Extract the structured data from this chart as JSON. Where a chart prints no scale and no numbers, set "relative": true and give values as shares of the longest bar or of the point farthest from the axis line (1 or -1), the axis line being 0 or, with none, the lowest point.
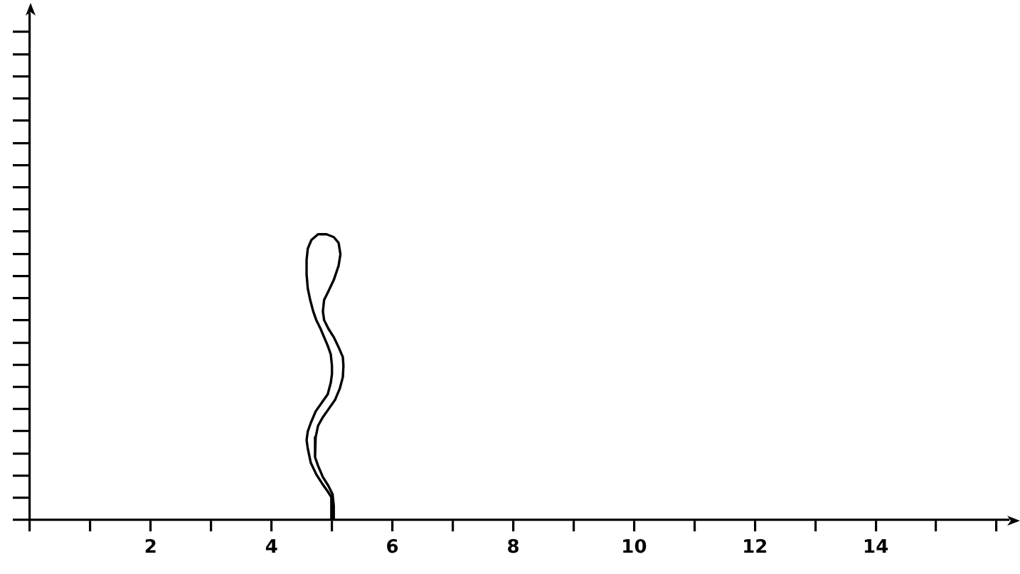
{
  "chart_data": {
    "type": "line",
    "relative": true,
    "color": "#000000",
    "line_style": "solid",
    "tick_labels": "x",
    "x": [
      4.99,
      4.99,
      4.93,
      4.83,
      4.74,
      4.65,
      4.6,
      4.58,
      4.6,
      4.65,
      4.73,
      4.83,
      4.93,
      4.98,
      5,
      5,
      4.98,
      4.93,
      4.87,
      4.81,
      4.74,
      4.69,
      4.64,
      4.6,
      4.58,
      4.58,
      4.6,
      4.66,
      4.77,
      4.91,
      5.03,
      5.11,
      5.14,
      5.11,
      5.03,
      4.94,
      4.87,
      4.85,
      4.87,
      4.94,
      5.03,
      5.12,
      5.18,
      5.19,
      5.18,
      5.13,
      5.05,
      4.95,
      4.85,
      4.77,
      4.73,
      4.71,
      4.73,
      4.77,
      4.85,
      4.94,
      5.01,
      5.03,
      5.03
    ],
    "values": [
      0,
      0.08,
      0.1,
      0.13,
      0.16,
      0.2,
      0.25,
      0.28,
      0.31,
      0.34,
      0.38,
      0.41,
      0.44,
      0.48,
      0.51,
      0.54,
      0.58,
      0.61,
      0.64,
      0.67,
      0.7,
      0.73,
      0.77,
      0.81,
      0.86,
      0.91,
      0.95,
      0.98,
      1,
      1,
      0.99,
      0.97,
      0.93,
      0.89,
      0.84,
      0.8,
      0.77,
      0.73,
      0.7,
      0.67,
      0.64,
      0.6,
      0.57,
      0.54,
      0.5,
      0.46,
      0.42,
      0.39,
      0.36,
      0.33,
      0.29,
      0.26,
      0.22,
      0.19,
      0.15,
      0.12,
      0.09,
      0.05,
      0
    ],
    "xlim": [
      0,
      16.2
    ],
    "xticks": [
      {
        "value": 0,
        "label": null
      },
      {
        "value": 1,
        "label": null
      },
      2,
      {
        "value": 3,
        "label": null
      },
      4,
      {
        "value": 5,
        "label": null
      },
      6,
      {
        "value": 7,
        "label": null
      },
      8,
      {
        "value": 9,
        "label": null
      },
      10,
      {
        "value": 11,
        "label": null
      },
      12,
      {
        "value": 13,
        "label": null
      },
      14,
      {
        "value": 15,
        "label": null
      },
      {
        "value": 16,
        "label": null
      }
    ]
  }
}
